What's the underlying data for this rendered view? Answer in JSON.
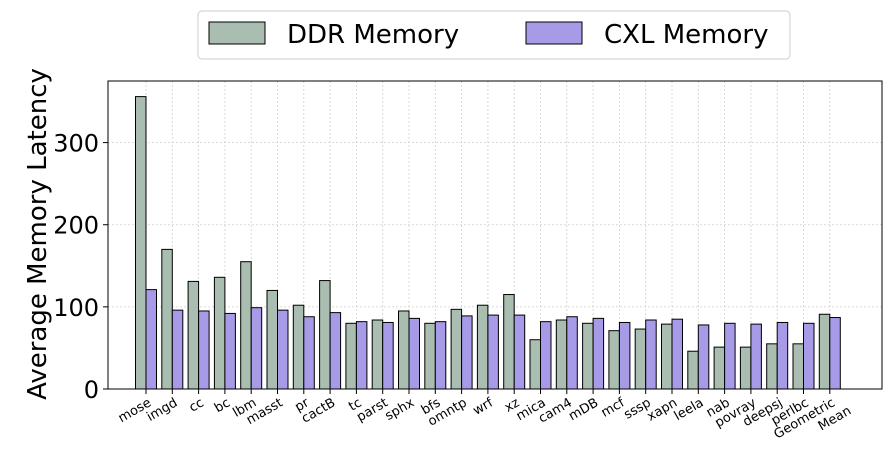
{
  "chart_data": {
    "type": "bar",
    "title": "",
    "xlabel": "",
    "ylabel": "Average Memory Latency",
    "ylim": [
      0,
      375
    ],
    "yticks": [
      0,
      100,
      200,
      300
    ],
    "grid": true,
    "legend_position": "top-center",
    "categories": [
      "mose",
      "imgd",
      "cc",
      "bc",
      "lbm",
      "masst",
      "pr",
      "cactB",
      "tc",
      "parst",
      "sphx",
      "bfs",
      "omntp",
      "wrf",
      "xz",
      "mica",
      "cam4",
      "mDB",
      "mcf",
      "sssp",
      "xapn",
      "leela",
      "nab",
      "povray",
      "deepsj",
      "perlbc",
      "Geometric\nMean"
    ],
    "series": [
      {
        "name": "DDR Memory",
        "color": "#a9bdb0",
        "values": [
          356,
          170,
          131,
          136,
          155,
          120,
          102,
          132,
          80,
          84,
          95,
          80,
          97,
          102,
          115,
          60,
          84,
          80,
          71,
          73,
          79,
          46,
          51,
          51,
          55,
          55,
          91
        ]
      },
      {
        "name": "CXL Memory",
        "color": "#a79ae6",
        "values": [
          121,
          96,
          95,
          92,
          99,
          96,
          88,
          93,
          82,
          81,
          86,
          82,
          89,
          90,
          90,
          82,
          88,
          86,
          81,
          84,
          85,
          78,
          80,
          79,
          81,
          80,
          87
        ]
      }
    ]
  }
}
